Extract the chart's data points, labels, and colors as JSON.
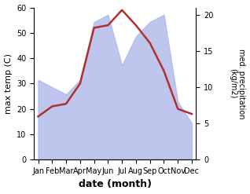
{
  "months": [
    "Jan",
    "Feb",
    "Mar",
    "Apr",
    "May",
    "Jun",
    "Jul",
    "Aug",
    "Sep",
    "Oct",
    "Nov",
    "Dec"
  ],
  "temp_max": [
    17,
    21,
    22,
    30,
    52,
    53,
    59,
    53,
    46,
    35,
    20,
    18
  ],
  "precip": [
    11,
    10,
    9,
    11,
    19,
    20,
    13,
    17,
    19,
    20,
    8,
    5
  ],
  "temp_ylim": [
    0,
    60
  ],
  "precip_ylim": [
    0,
    21
  ],
  "temp_yticks": [
    0,
    10,
    20,
    30,
    40,
    50,
    60
  ],
  "precip_yticks": [
    0,
    5,
    10,
    15,
    20
  ],
  "fill_color": "#aab4e8",
  "fill_alpha": 0.75,
  "line_color": "#b03030",
  "line_width": 1.8,
  "xlabel": "date (month)",
  "ylabel_left": "max temp (C)",
  "ylabel_right": "med. precipitation\n(kg/m2)"
}
